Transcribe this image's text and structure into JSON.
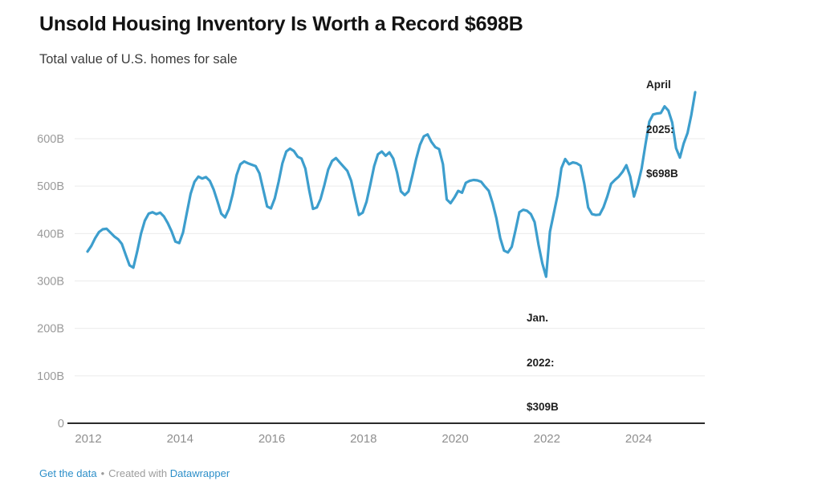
{
  "header": {
    "title": "Unsold Housing Inventory Is Worth a Record $698B",
    "subtitle": "Total value of U.S. homes for sale"
  },
  "footer": {
    "get_data_label": "Get the data",
    "separator": "•",
    "credit_prefix": "Created with",
    "credit_link_label": "Datawrapper"
  },
  "chart_data": {
    "type": "line",
    "title": "Unsold Housing Inventory Is Worth a Record $698B",
    "subtitle": "Total value of U.S. homes for sale",
    "unit": "billions of U.S. dollars",
    "x_range": [
      "2012-01",
      "2025-04"
    ],
    "x_tick_years": [
      2012,
      2014,
      2016,
      2018,
      2020,
      2022,
      2024
    ],
    "y_ticks": [
      {
        "label": "600B",
        "value": 600
      },
      {
        "label": "500B",
        "value": 500
      },
      {
        "label": "400B",
        "value": 400
      },
      {
        "label": "300B",
        "value": 300
      },
      {
        "label": "200B",
        "value": 200
      },
      {
        "label": "100B",
        "value": 100
      },
      {
        "label": "0",
        "value": 0
      }
    ],
    "ylim": [
      0,
      710
    ],
    "grid": "horizontal",
    "legend_position": "none",
    "line_color": "#3d9ecd",
    "grid_color": "#ebebeb",
    "axis_color": "#2b2b2b",
    "tick_label_color": "#9a9a9a",
    "annotations": [
      {
        "id": "apr-2025",
        "lines": [
          "April",
          "2025:",
          "$698B"
        ],
        "point": {
          "month": "2025-04",
          "value": 698
        }
      },
      {
        "id": "jan-2022",
        "lines": [
          "Jan.",
          "2022:",
          "$309B"
        ],
        "point": {
          "month": "2022-01",
          "value": 309
        }
      }
    ],
    "series": [
      {
        "name": "Total value of U.S. homes for sale",
        "start_month": "2012-01",
        "values_by_year": [
          {
            "year": 2012,
            "values": [
              362,
              374,
              390,
              403,
              409,
              410,
              402,
              394,
              388,
              378,
              355,
              333
            ]
          },
          {
            "year": 2013,
            "values": [
              328,
              362,
              400,
              427,
              442,
              445,
              441,
              444,
              436,
              422,
              405,
              383
            ]
          },
          {
            "year": 2014,
            "values": [
              380,
              402,
              444,
              484,
              509,
              520,
              516,
              519,
              511,
              493,
              468,
              442
            ]
          },
          {
            "year": 2015,
            "values": [
              434,
              452,
              483,
              523,
              546,
              552,
              548,
              545,
              542,
              527,
              492,
              457
            ]
          },
          {
            "year": 2016,
            "values": [
              453,
              474,
              509,
              548,
              573,
              579,
              574,
              562,
              558,
              537,
              492,
              452
            ]
          },
          {
            "year": 2017,
            "values": [
              455,
              473,
              503,
              535,
              553,
              559,
              550,
              541,
              532,
              511,
              474,
              439
            ]
          },
          {
            "year": 2018,
            "values": [
              444,
              467,
              503,
              542,
              567,
              573,
              564,
              571,
              558,
              529,
              489,
              481
            ]
          },
          {
            "year": 2019,
            "values": [
              489,
              522,
              557,
              587,
              605,
              609,
              593,
              582,
              578,
              546,
              472,
              464
            ]
          },
          {
            "year": 2020,
            "values": [
              476,
              490,
              486,
              507,
              511,
              513,
              512,
              509,
              499,
              490,
              464,
              432
            ]
          },
          {
            "year": 2021,
            "values": [
              390,
              364,
              360,
              372,
              407,
              445,
              450,
              448,
              441,
              424,
              377,
              337
            ]
          },
          {
            "year": 2022,
            "values": [
              309,
              404,
              442,
              481,
              538,
              557,
              546,
              550,
              548,
              543,
              505,
              455
            ]
          },
          {
            "year": 2023,
            "values": [
              441,
              439,
              440,
              455,
              478,
              505,
              513,
              520,
              530,
              544,
              520,
              478
            ]
          },
          {
            "year": 2024,
            "values": [
              504,
              537,
              588,
              636,
              651,
              653,
              654,
              668,
              659,
              634,
              580,
              560
            ]
          },
          {
            "year": 2025,
            "values": [
              590,
              612,
              650,
              698
            ]
          }
        ]
      }
    ]
  }
}
